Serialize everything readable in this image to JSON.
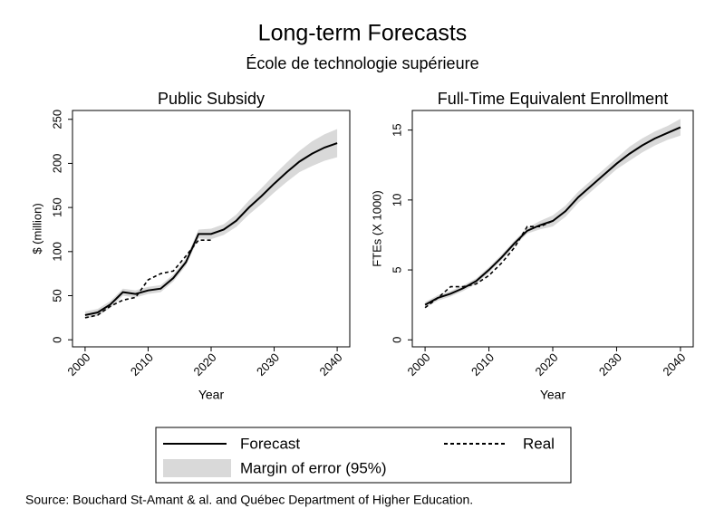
{
  "title": "Long-term Forecasts",
  "subtitle": "École de technologie supérieure",
  "source": "Source: Bouchard St-Amant & al. and Québec Department of Higher Education.",
  "chart_data": [
    {
      "type": "line",
      "title": "Public Subsidy",
      "xlabel": "Year",
      "ylabel": "$ (million)",
      "x": [
        2000,
        2002,
        2004,
        2006,
        2008,
        2010,
        2012,
        2014,
        2016,
        2018,
        2020,
        2022,
        2024,
        2026,
        2028,
        2030,
        2032,
        2034,
        2036,
        2038,
        2040
      ],
      "xlim": [
        1998,
        2042
      ],
      "xticks": [
        2000,
        2010,
        2020,
        2030,
        2040
      ],
      "ylim": [
        -8,
        260
      ],
      "yticks": [
        0,
        50,
        100,
        150,
        200,
        250
      ],
      "band": {
        "name": "Margin of error (95%)",
        "color": "#d9d9d9",
        "lower": [
          24,
          27,
          36,
          50,
          48,
          52,
          54,
          66,
          84,
          115,
          114,
          119,
          128,
          142,
          154,
          167,
          179,
          190,
          197,
          203,
          207
        ],
        "upper": [
          32,
          35,
          44,
          58,
          56,
          60,
          62,
          74,
          92,
          125,
          126,
          131,
          142,
          158,
          172,
          187,
          201,
          214,
          225,
          233,
          239
        ]
      },
      "series": [
        {
          "name": "Forecast",
          "color": "#000000",
          "dash": false,
          "values": [
            28,
            31,
            40,
            54,
            52,
            56,
            58,
            70,
            88,
            120,
            120,
            125,
            135,
            150,
            163,
            177,
            190,
            202,
            211,
            218,
            223
          ]
        },
        {
          "name": "Real",
          "color": "#000000",
          "dash": true,
          "values": [
            25,
            28,
            38,
            45,
            48,
            68,
            75,
            78,
            95,
            113,
            113,
            null,
            null,
            null,
            null,
            null,
            null,
            null,
            null,
            null,
            null
          ]
        }
      ]
    },
    {
      "type": "line",
      "title": "Full-Time Equivalent Enrollment",
      "xlabel": "Year",
      "ylabel": "FTEs (X 1000)",
      "x": [
        2000,
        2002,
        2004,
        2006,
        2008,
        2010,
        2012,
        2014,
        2016,
        2018,
        2020,
        2022,
        2024,
        2026,
        2028,
        2030,
        2032,
        2034,
        2036,
        2038,
        2040
      ],
      "xlim": [
        1998,
        2042
      ],
      "xticks": [
        2000,
        2010,
        2020,
        2030,
        2040
      ],
      "ylim": [
        -0.5,
        16.4
      ],
      "yticks": [
        0,
        5,
        10,
        15
      ],
      "band": {
        "name": "Margin of error (95%)",
        "color": "#d9d9d9",
        "lower": [
          2.3,
          2.8,
          3.1,
          3.5,
          4.0,
          4.8,
          5.7,
          6.7,
          7.6,
          7.9,
          8.1,
          8.8,
          9.8,
          10.6,
          11.4,
          12.2,
          12.8,
          13.4,
          13.9,
          14.3,
          14.6
        ],
        "upper": [
          2.7,
          3.2,
          3.5,
          3.9,
          4.4,
          5.2,
          6.1,
          7.1,
          8.0,
          8.5,
          8.9,
          9.6,
          10.6,
          11.4,
          12.2,
          13.0,
          13.8,
          14.4,
          14.9,
          15.3,
          15.8
        ]
      },
      "series": [
        {
          "name": "Forecast",
          "color": "#000000",
          "dash": false,
          "values": [
            2.5,
            3.0,
            3.3,
            3.7,
            4.2,
            5.0,
            5.9,
            6.9,
            7.8,
            8.2,
            8.5,
            9.2,
            10.2,
            11.0,
            11.8,
            12.6,
            13.3,
            13.9,
            14.4,
            14.8,
            15.2
          ]
        },
        {
          "name": "Real",
          "color": "#000000",
          "dash": true,
          "values": [
            2.3,
            3.0,
            3.8,
            3.8,
            4.0,
            4.6,
            5.5,
            6.6,
            8.1,
            8.1,
            8.5,
            null,
            null,
            null,
            null,
            null,
            null,
            null,
            null,
            null,
            null
          ]
        }
      ]
    }
  ]
}
